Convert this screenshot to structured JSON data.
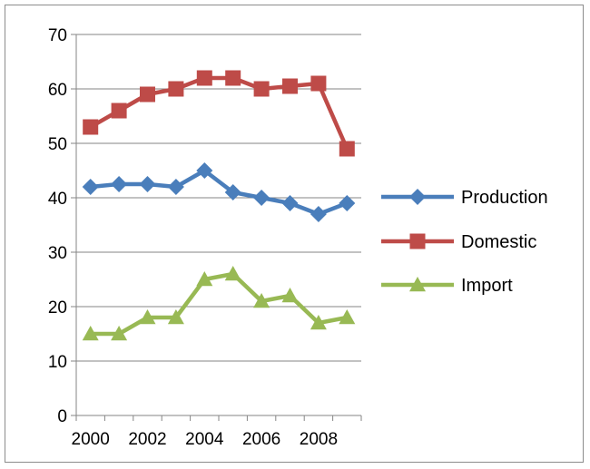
{
  "chart_data": {
    "type": "line",
    "title": "",
    "xlabel": "",
    "ylabel": "",
    "x": [
      2000,
      2001,
      2002,
      2003,
      2004,
      2005,
      2006,
      2007,
      2008,
      2009
    ],
    "x_tick_labels": [
      "2000",
      "2002",
      "2004",
      "2006",
      "2008"
    ],
    "ylim": [
      0,
      70
    ],
    "y_ticks": [
      0,
      10,
      20,
      30,
      40,
      50,
      60,
      70
    ],
    "grid": "horizontal",
    "legend_position": "right",
    "series": [
      {
        "name": "Production",
        "color": "#4a7ebb",
        "marker": "diamond",
        "values": [
          42,
          42.5,
          42.5,
          42,
          45,
          41,
          40,
          39,
          37,
          39
        ]
      },
      {
        "name": "Domestic",
        "color": "#be4b48",
        "marker": "square",
        "values": [
          53,
          56,
          59,
          60,
          62,
          62,
          60,
          60.5,
          61,
          49
        ]
      },
      {
        "name": "Import",
        "color": "#98b954",
        "marker": "triangle",
        "values": [
          15,
          15,
          18,
          18,
          25,
          26,
          21,
          22,
          17,
          18
        ]
      }
    ]
  }
}
